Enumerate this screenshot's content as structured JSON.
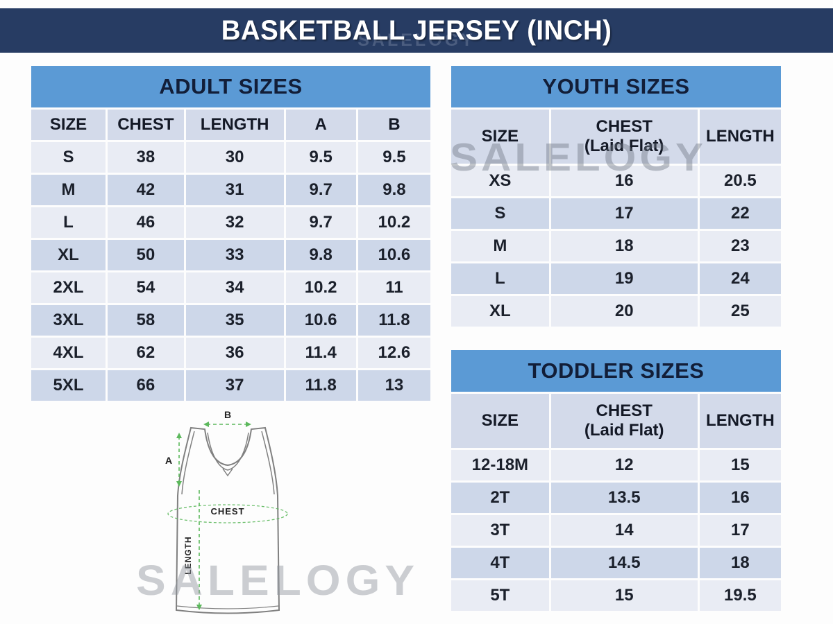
{
  "title": "BASKETBALL JERSEY (INCH)",
  "watermark": {
    "text": "SALELOGY"
  },
  "colors": {
    "title_bar_navy": "#273C63",
    "band_blue": "#5B9AD5",
    "row_light": "#E9ECF4",
    "row_dark": "#CDD7E9",
    "header_row": "#D3DAEA",
    "diagram_green": "#5CB85C"
  },
  "adult_table": {
    "title": "ADULT SIZES",
    "columns": [
      {
        "label": "SIZE"
      },
      {
        "label": "CHEST"
      },
      {
        "label": "LENGTH"
      },
      {
        "label": "A"
      },
      {
        "label": "B"
      }
    ],
    "rows": [
      [
        "S",
        "38",
        "30",
        "9.5",
        "9.5"
      ],
      [
        "M",
        "42",
        "31",
        "9.7",
        "9.8"
      ],
      [
        "L",
        "46",
        "32",
        "9.7",
        "10.2"
      ],
      [
        "XL",
        "50",
        "33",
        "9.8",
        "10.6"
      ],
      [
        "2XL",
        "54",
        "34",
        "10.2",
        "11"
      ],
      [
        "3XL",
        "58",
        "35",
        "10.6",
        "11.8"
      ],
      [
        "4XL",
        "62",
        "36",
        "11.4",
        "12.6"
      ],
      [
        "5XL",
        "66",
        "37",
        "11.8",
        "13"
      ]
    ]
  },
  "youth_table": {
    "title": "YOUTH SIZES",
    "columns": [
      {
        "label": "SIZE"
      },
      {
        "label": "CHEST",
        "sub": "(Laid Flat)"
      },
      {
        "label": "LENGTH"
      }
    ],
    "rows": [
      [
        "XS",
        "16",
        "20.5"
      ],
      [
        "S",
        "17",
        "22"
      ],
      [
        "M",
        "18",
        "23"
      ],
      [
        "L",
        "19",
        "24"
      ],
      [
        "XL",
        "20",
        "25"
      ]
    ]
  },
  "toddler_table": {
    "title": "TODDLER SIZES",
    "columns": [
      {
        "label": "SIZE"
      },
      {
        "label": "CHEST",
        "sub": "(Laid Flat)"
      },
      {
        "label": "LENGTH"
      }
    ],
    "rows": [
      [
        "12-18M",
        "12",
        "15"
      ],
      [
        "2T",
        "13.5",
        "16"
      ],
      [
        "3T",
        "14",
        "17"
      ],
      [
        "4T",
        "14.5",
        "18"
      ],
      [
        "5T",
        "15",
        "19.5"
      ]
    ]
  },
  "diagram": {
    "label_a": "A",
    "label_b": "B",
    "label_chest": "CHEST",
    "label_length": "LENGTH"
  }
}
